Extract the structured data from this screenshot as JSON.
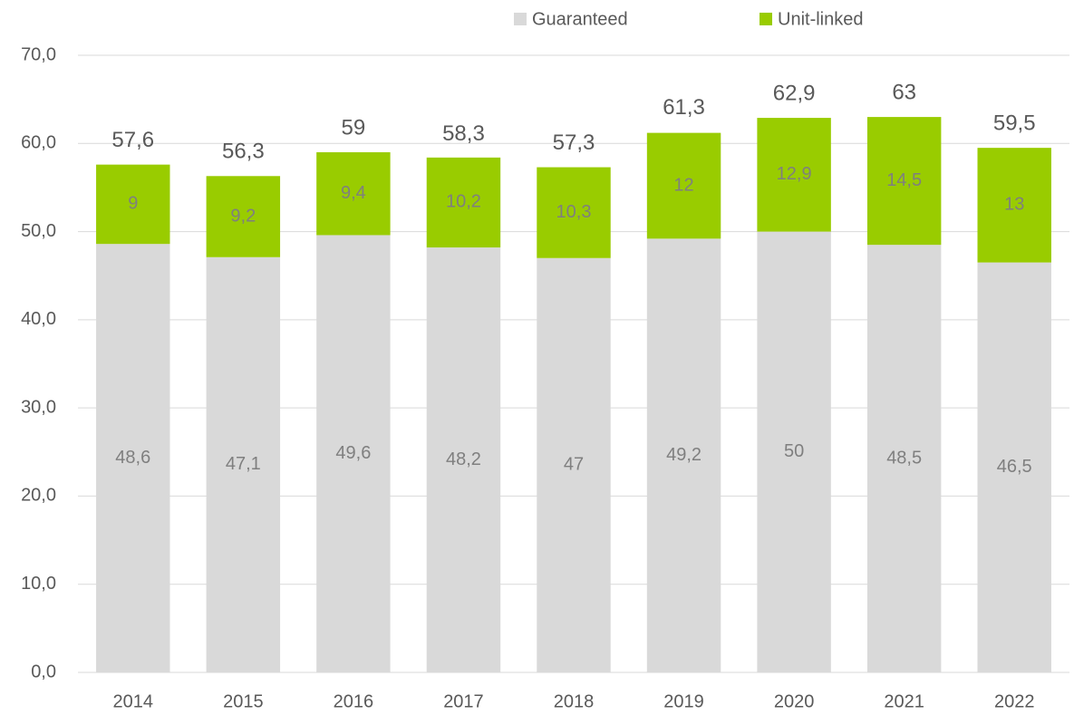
{
  "chart_data": {
    "type": "stacked_bar",
    "categories": [
      "2014",
      "2015",
      "2016",
      "2017",
      "2018",
      "2019",
      "2020",
      "2021",
      "2022"
    ],
    "series": [
      {
        "name": "Guaranteed",
        "color": "#d9d9d9",
        "values": [
          48.6,
          47.1,
          49.6,
          48.2,
          47,
          49.2,
          50,
          48.5,
          46.5
        ],
        "value_labels": [
          "48,6",
          "47,1",
          "49,6",
          "48,2",
          "47",
          "49,2",
          "50",
          "48,5",
          "46,5"
        ]
      },
      {
        "name": "Unit-linked",
        "color": "#99cc00",
        "values": [
          9,
          9.2,
          9.4,
          10.2,
          10.3,
          12,
          12.9,
          14.5,
          13
        ],
        "value_labels": [
          "9",
          "9,2",
          "9,4",
          "10,2",
          "10,3",
          "12",
          "12,9",
          "14,5",
          "13"
        ]
      }
    ],
    "totals": {
      "values": [
        57.6,
        56.3,
        59,
        58.3,
        57.3,
        61.3,
        62.9,
        63,
        59.5
      ],
      "value_labels": [
        "57,6",
        "56,3",
        "59",
        "58,3",
        "57,3",
        "61,3",
        "62,9",
        "63",
        "59,5"
      ]
    },
    "ylim": [
      0,
      70
    ],
    "yticks": [
      {
        "value": 0,
        "label": "0,0"
      },
      {
        "value": 10,
        "label": "10,0"
      },
      {
        "value": 20,
        "label": "20,0"
      },
      {
        "value": 30,
        "label": "30,0"
      },
      {
        "value": 40,
        "label": "40,0"
      },
      {
        "value": 50,
        "label": "50,0"
      },
      {
        "value": 60,
        "label": "60,0"
      },
      {
        "value": 70,
        "label": "70,0"
      }
    ],
    "grid": true,
    "legend": "top"
  }
}
